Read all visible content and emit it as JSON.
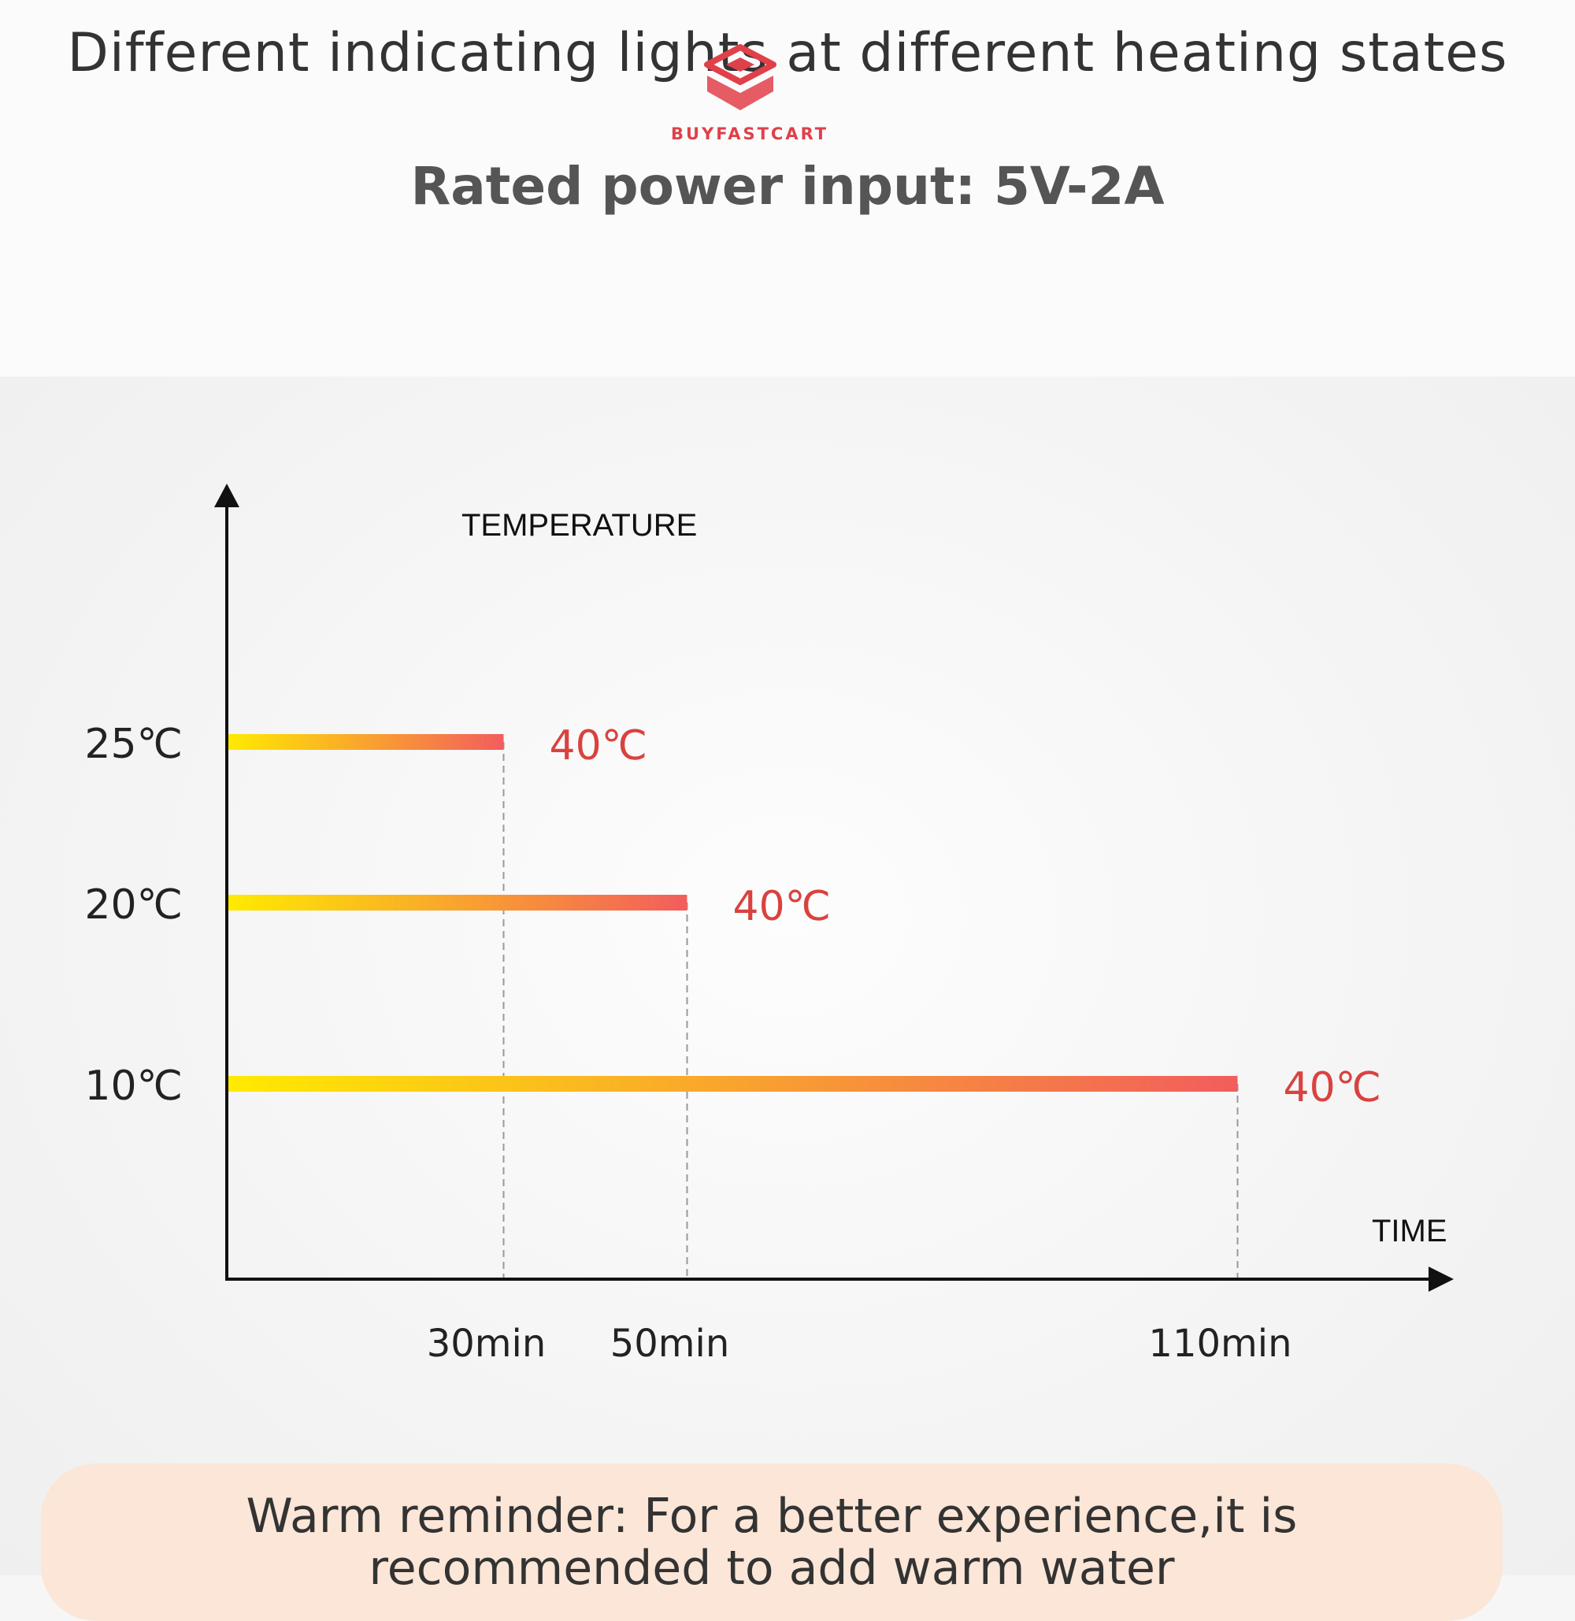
{
  "header": {
    "title": "Different indicating lights at different heating states",
    "subtitle": "Rated power input: 5V-2A"
  },
  "logo": {
    "text": "BUYFASTCART",
    "icon": "cube-logo-icon",
    "color": "#e0404a"
  },
  "chart_data": {
    "type": "bar",
    "orientation": "horizontal",
    "ylabel": "TEMPERATURE",
    "xlabel": "TIME",
    "categories": [
      "25℃",
      "20℃",
      "10℃"
    ],
    "x_tick_labels": [
      "30min",
      "50min",
      "110min"
    ],
    "values": [
      30,
      50,
      110
    ],
    "end_labels": [
      "40℃",
      "40℃",
      "40℃"
    ],
    "xlim": [
      0,
      135
    ],
    "grid": false,
    "colors": {
      "bar_start": "#ffea00",
      "bar_end": "#f25d5d",
      "end_label": "#d9423f",
      "axis": "#111111",
      "dash": "#999999"
    }
  },
  "reminder": {
    "line1": "Warm reminder: For a better experience,it is",
    "line2": "recommended to add warm water"
  }
}
